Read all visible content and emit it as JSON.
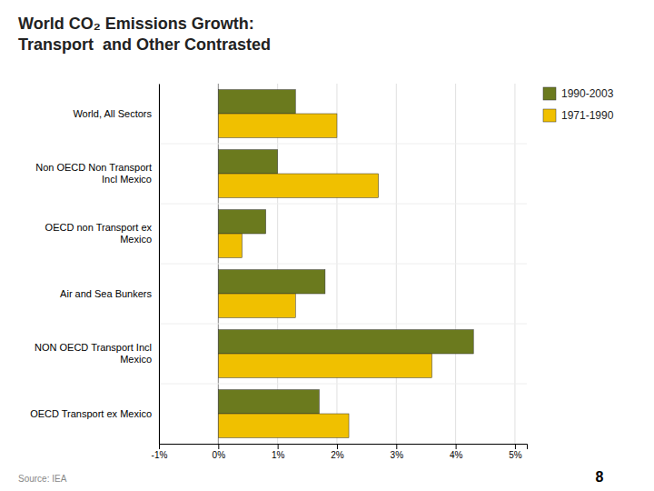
{
  "chart_data": {
    "type": "bar",
    "orientation": "horizontal",
    "title": "World CO₂ Emissions Growth:\nTransport  and Other Contrasted",
    "categories": [
      "World, All Sectors",
      "Non OECD Non Transport\nIncl Mexico",
      "OECD non Transport ex\nMexico",
      "Air and Sea Bunkers",
      "NON OECD Transport Incl\nMexico",
      "OECD Transport ex Mexico"
    ],
    "series": [
      {
        "name": "1990-2003",
        "color": "#6b7a1e",
        "values": [
          0.013,
          0.01,
          0.008,
          0.018,
          0.043,
          0.017
        ]
      },
      {
        "name": "1971-1990",
        "color": "#f0c000",
        "values": [
          0.02,
          0.027,
          0.004,
          0.013,
          0.036,
          0.022
        ]
      }
    ],
    "xlim": [
      -0.01,
      0.052
    ],
    "xticks": [
      {
        "value": -0.01,
        "label": "-1%"
      },
      {
        "value": 0.0,
        "label": "0%"
      },
      {
        "value": 0.01,
        "label": "1%"
      },
      {
        "value": 0.02,
        "label": "2%"
      },
      {
        "value": 0.03,
        "label": "3%"
      },
      {
        "value": 0.04,
        "label": "4%"
      },
      {
        "value": 0.05,
        "label": "5%"
      }
    ],
    "grid": true,
    "legend": "right",
    "annotations": [
      "Source: IEA",
      "8"
    ]
  }
}
